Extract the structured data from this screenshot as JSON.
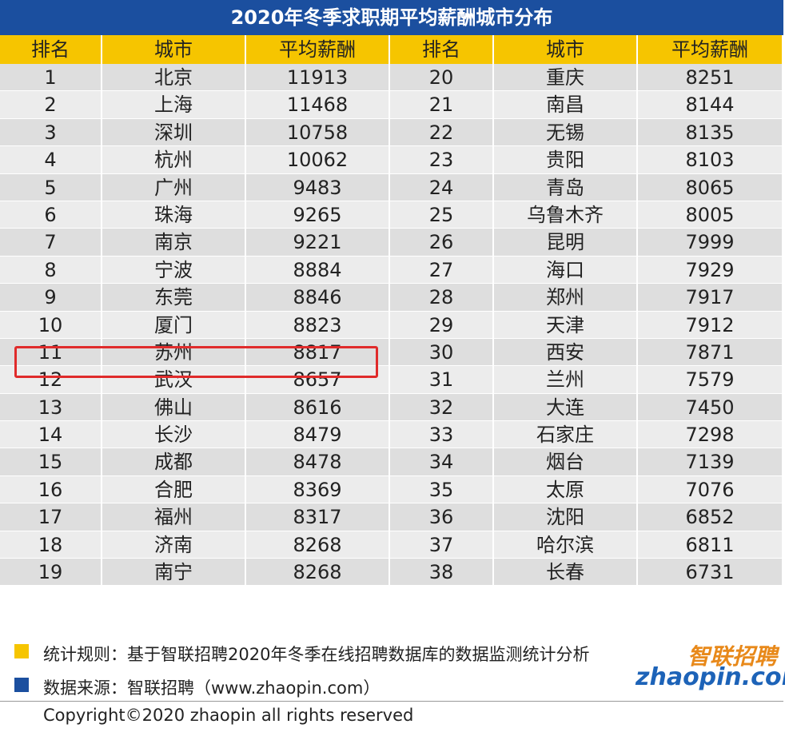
{
  "title": "2020年冬季求职期平均薪酬城市分布",
  "table": {
    "header": [
      "排名",
      "城市",
      "平均薪酬",
      "排名",
      "城市",
      "平均薪酬"
    ],
    "rows": [
      [
        1,
        "北京",
        11913,
        20,
        "重庆",
        8251
      ],
      [
        2,
        "上海",
        11468,
        21,
        "南昌",
        8144
      ],
      [
        3,
        "深圳",
        10758,
        22,
        "无锡",
        8135
      ],
      [
        4,
        "杭州",
        10062,
        23,
        "贵阳",
        8103
      ],
      [
        5,
        "广州",
        9483,
        24,
        "青岛",
        8065
      ],
      [
        6,
        "珠海",
        9265,
        25,
        "乌鲁木齐",
        8005
      ],
      [
        7,
        "南京",
        9221,
        26,
        "昆明",
        7999
      ],
      [
        8,
        "宁波",
        8884,
        27,
        "海口",
        7929
      ],
      [
        9,
        "东莞",
        8846,
        28,
        "郑州",
        7917
      ],
      [
        10,
        "厦门",
        8823,
        29,
        "天津",
        7912
      ],
      [
        11,
        "苏州",
        8817,
        30,
        "西安",
        7871
      ],
      [
        12,
        "武汉",
        8657,
        31,
        "兰州",
        7579
      ],
      [
        13,
        "佛山",
        8616,
        32,
        "大连",
        7450
      ],
      [
        14,
        "长沙",
        8479,
        33,
        "石家庄",
        7298
      ],
      [
        15,
        "成都",
        8478,
        34,
        "烟台",
        7139
      ],
      [
        16,
        "合肥",
        8369,
        35,
        "太原",
        7076
      ],
      [
        17,
        "福州",
        8317,
        36,
        "沈阳",
        6852
      ],
      [
        18,
        "济南",
        8268,
        37,
        "哈尔滨",
        6811
      ],
      [
        19,
        "南宁",
        8268,
        38,
        "长春",
        6731
      ]
    ]
  },
  "footer": {
    "rule": "统计规则：基于智联招聘2020年冬季在线招聘数据库的数据监测统计分析",
    "source": "数据来源：智联招聘（www.zhaopin.com）",
    "copyright": "Copyright©2020 zhaopin all rights reserved"
  },
  "logo": {
    "cn": "智联招聘",
    "en": "zhaopin.com"
  }
}
